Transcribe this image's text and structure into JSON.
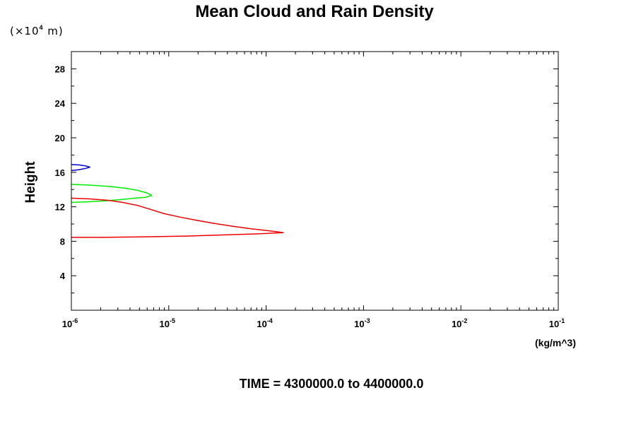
{
  "chart_data": {
    "type": "line",
    "title": "Mean Cloud and Rain Density",
    "ylabel": "Height",
    "y_scale_note": {
      "prefix": "(×10",
      "exponent": "4",
      "suffix": " m)"
    },
    "xlabel_unit": "(kg/m^3)",
    "time_label": "TIME = 4300000.0 to 4400000.0",
    "x_scale": "log",
    "xlim": [
      1e-06,
      0.1
    ],
    "ylim": [
      0,
      30
    ],
    "x_ticks": [
      {
        "base": "10",
        "exp": "-6",
        "value": 1e-06
      },
      {
        "base": "10",
        "exp": "-5",
        "value": 1e-05
      },
      {
        "base": "10",
        "exp": "-4",
        "value": 0.0001
      },
      {
        "base": "10",
        "exp": "-3",
        "value": 0.001
      },
      {
        "base": "10",
        "exp": "-2",
        "value": 0.01
      },
      {
        "base": "10",
        "exp": "-1",
        "value": 0.1
      }
    ],
    "y_ticks": [
      "4",
      "8",
      "12",
      "16",
      "20",
      "24",
      "28"
    ],
    "grid": false,
    "legend": "none",
    "series": [
      {
        "color": "#0000cc",
        "points": [
          [
            1e-06,
            16.9
          ],
          [
            1.2e-06,
            16.85
          ],
          [
            1.4e-06,
            16.75
          ],
          [
            1.55e-06,
            16.6
          ],
          [
            1.4e-06,
            16.45
          ],
          [
            1.2e-06,
            16.3
          ],
          [
            1e-06,
            16.2
          ]
        ]
      },
      {
        "color": "#00ee00",
        "points": [
          [
            1e-06,
            14.6
          ],
          [
            1.6e-06,
            14.5
          ],
          [
            2.5e-06,
            14.35
          ],
          [
            3.6e-06,
            14.15
          ],
          [
            4.8e-06,
            13.9
          ],
          [
            6e-06,
            13.6
          ],
          [
            6.7e-06,
            13.3
          ],
          [
            5.8e-06,
            13.1
          ],
          [
            4.5e-06,
            13.0
          ],
          [
            3.3e-06,
            12.85
          ],
          [
            2.3e-06,
            12.7
          ],
          [
            1.6e-06,
            12.6
          ],
          [
            1e-06,
            12.5
          ]
        ]
      },
      {
        "color": "#ee0000",
        "points": [
          [
            1e-06,
            13.0
          ],
          [
            1.6e-06,
            12.9
          ],
          [
            2.4e-06,
            12.75
          ],
          [
            3.4e-06,
            12.5
          ],
          [
            4.8e-06,
            12.15
          ],
          [
            6.5e-06,
            11.7
          ],
          [
            9e-06,
            11.2
          ],
          [
            1.3e-05,
            10.8
          ],
          [
            2e-05,
            10.4
          ],
          [
            3e-05,
            10.05
          ],
          [
            4.5e-05,
            9.75
          ],
          [
            7e-05,
            9.45
          ],
          [
            0.0001,
            9.25
          ],
          [
            0.00013,
            9.1
          ],
          [
            0.00015,
            9.0
          ],
          [
            0.00012,
            8.95
          ],
          [
            8e-05,
            8.85
          ],
          [
            4e-05,
            8.75
          ],
          [
            1.5e-05,
            8.6
          ],
          [
            5e-06,
            8.5
          ],
          [
            2e-06,
            8.45
          ],
          [
            1e-06,
            8.45
          ]
        ]
      }
    ]
  }
}
